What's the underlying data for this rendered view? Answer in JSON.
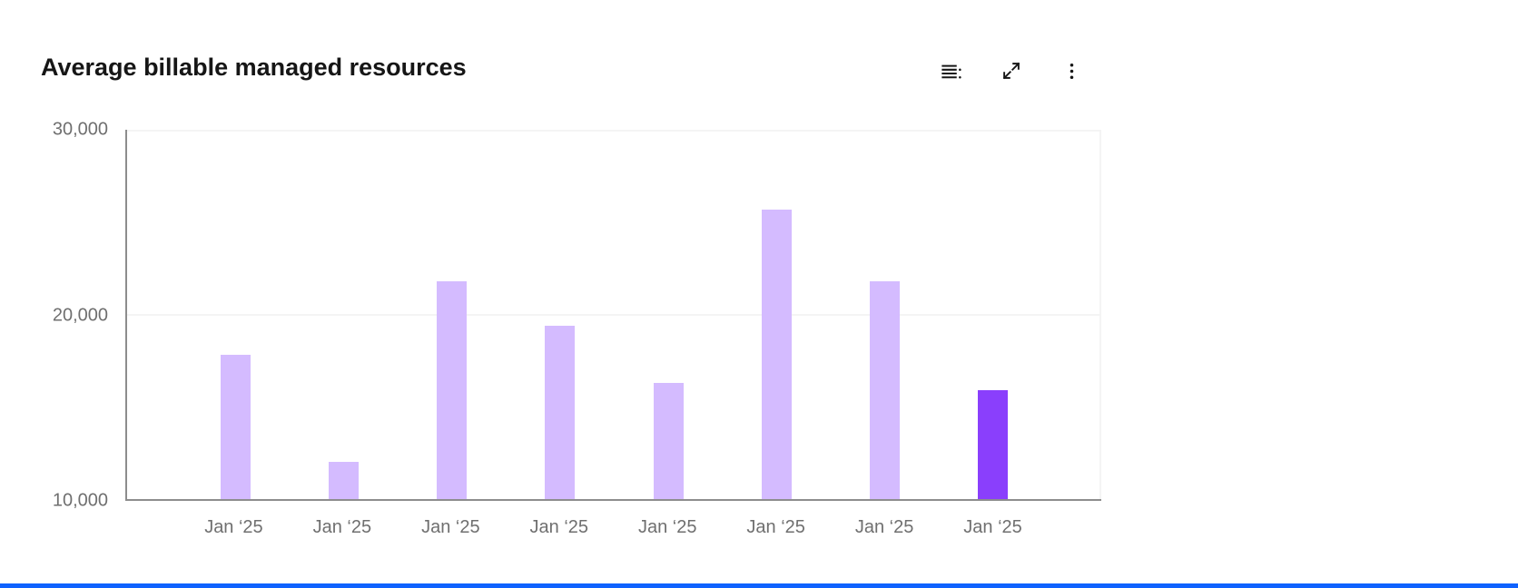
{
  "header": {
    "title": "Average billable managed resources",
    "toolbar": {
      "show_data_table_label": "Show data table",
      "expand_label": "Expand",
      "overflow_label": "More options"
    }
  },
  "chart_data": {
    "type": "bar",
    "title": "Average billable managed resources",
    "categories": [
      "Jan ‘25",
      "Jan ‘25",
      "Jan ‘25",
      "Jan ‘25",
      "Jan ‘25",
      "Jan ‘25",
      "Jan ‘25",
      "Jan ‘25"
    ],
    "values": [
      17800,
      12000,
      21800,
      19400,
      16300,
      25700,
      21800,
      15900
    ],
    "highlight_index": 7,
    "xlabel": "",
    "ylabel": "",
    "ylim": [
      10000,
      30000
    ],
    "yticks": [
      10000,
      20000,
      30000
    ],
    "ytick_labels": [
      "10,000",
      "20,000",
      "30,000"
    ],
    "grid": true,
    "legend": "none",
    "colors": {
      "bar": "#d4bbff",
      "bar_highlight": "#8a3ffc",
      "axis": "#8d8d8d",
      "grid": "#f4f4f4",
      "tick_text": "#6f6f6f",
      "title_text": "#161616"
    }
  },
  "footer": {
    "accent_color": "#0f62fe"
  }
}
